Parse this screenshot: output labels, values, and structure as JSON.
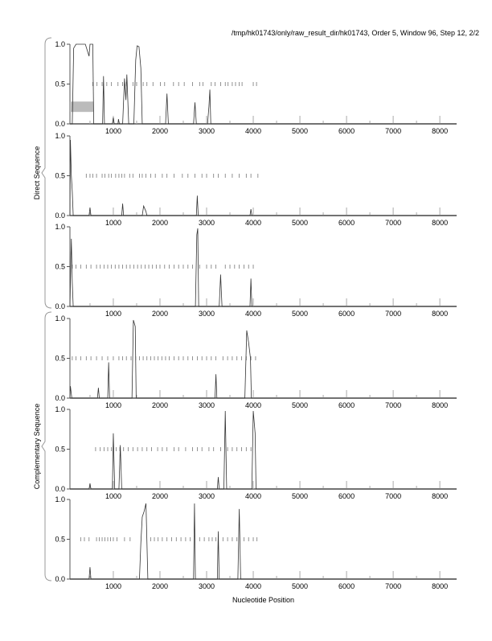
{
  "chart_data": {
    "type": "line",
    "title": "/tmp/hk01743/only/raw_result_dir/hk01743, Order 5, Window 96, Step 12, 2/2",
    "xlabel": "Nucleotide Position",
    "group_labels": [
      "Direct Sequence",
      "Complementary Sequence"
    ],
    "xlim": [
      70,
      8360
    ],
    "ylim": [
      0,
      1
    ],
    "xticks": [
      1000,
      2000,
      3000,
      4000,
      5000,
      6000,
      7000,
      8000
    ],
    "xtick_labels": [
      "1000",
      "2000",
      "3000",
      "4000",
      "5000",
      "6000",
      "7000",
      "8000"
    ],
    "yticks": [
      0,
      0.5,
      1
    ],
    "ytick_labels": [
      "0.0",
      "0.5",
      "1.0"
    ],
    "colors": {
      "line": "#333333",
      "mark": "#777777",
      "box": "#bbbbbb",
      "axis": "#555555"
    },
    "panels": [
      {
        "group": "Direct Sequence",
        "highlight": {
          "x": [
            70,
            570
          ],
          "y": [
            0.15,
            0.28
          ]
        },
        "series": [
          [
            70,
            0
          ],
          [
            120,
            0
          ],
          [
            150,
            0.95
          ],
          [
            200,
            1
          ],
          [
            400,
            1
          ],
          [
            480,
            0.85
          ],
          [
            500,
            1
          ],
          [
            560,
            1
          ],
          [
            580,
            0
          ],
          [
            770,
            0
          ],
          [
            790,
            0.6
          ],
          [
            810,
            0
          ],
          [
            980,
            0
          ],
          [
            1000,
            0.08
          ],
          [
            1020,
            0
          ],
          [
            1100,
            0
          ],
          [
            1110,
            0.06
          ],
          [
            1130,
            0
          ],
          [
            1200,
            0
          ],
          [
            1240,
            0.57
          ],
          [
            1270,
            0.3
          ],
          [
            1290,
            0.62
          ],
          [
            1330,
            0
          ],
          [
            1440,
            0
          ],
          [
            1480,
            0.8
          ],
          [
            1510,
            0.98
          ],
          [
            1550,
            0.97
          ],
          [
            1590,
            0.7
          ],
          [
            1620,
            0
          ],
          [
            2120,
            0
          ],
          [
            2150,
            0.38
          ],
          [
            2180,
            0
          ],
          [
            2720,
            0
          ],
          [
            2750,
            0.27
          ],
          [
            2780,
            0
          ],
          [
            3020,
            0
          ],
          [
            3050,
            0.22
          ],
          [
            3070,
            0.43
          ],
          [
            3090,
            0
          ],
          [
            8360,
            0
          ]
        ],
        "marks": [
          560,
          650,
          760,
          860,
          960,
          1100,
          1200,
          1280,
          1420,
          1500,
          1640,
          1720,
          1850,
          2010,
          2100,
          2290,
          2400,
          2520,
          2700,
          2850,
          2920,
          3100,
          3180,
          3300,
          3400,
          3460,
          3550,
          3620,
          3700,
          3760,
          4000,
          4070
        ]
      },
      {
        "group": "Direct Sequence",
        "series": [
          [
            70,
            0
          ],
          [
            80,
            0.95
          ],
          [
            100,
            0.5
          ],
          [
            120,
            0.3
          ],
          [
            140,
            0
          ],
          [
            480,
            0
          ],
          [
            500,
            0.1
          ],
          [
            520,
            0
          ],
          [
            1180,
            0
          ],
          [
            1200,
            0.15
          ],
          [
            1220,
            0
          ],
          [
            1620,
            0
          ],
          [
            1650,
            0.12
          ],
          [
            1700,
            0.05
          ],
          [
            1720,
            0
          ],
          [
            2780,
            0
          ],
          [
            2800,
            0.25
          ],
          [
            2820,
            0
          ],
          [
            3930,
            0
          ],
          [
            3950,
            0.08
          ],
          [
            3970,
            0
          ],
          [
            8360,
            0
          ]
        ],
        "marks": [
          420,
          500,
          560,
          640,
          760,
          820,
          900,
          960,
          1050,
          1120,
          1180,
          1240,
          1350,
          1420,
          1560,
          1620,
          1700,
          1800,
          1900,
          2050,
          2150,
          2300,
          2480,
          2600,
          2750,
          2900,
          3000,
          3150,
          3250,
          3400,
          3550,
          3700,
          3850,
          3950,
          4100
        ]
      },
      {
        "group": "Direct Sequence",
        "series": [
          [
            70,
            0
          ],
          [
            90,
            0.6
          ],
          [
            100,
            0.85
          ],
          [
            120,
            0.3
          ],
          [
            140,
            0
          ],
          [
            2760,
            0
          ],
          [
            2790,
            0.9
          ],
          [
            2810,
            0.98
          ],
          [
            2830,
            0
          ],
          [
            3270,
            0
          ],
          [
            3300,
            0.4
          ],
          [
            3330,
            0
          ],
          [
            3930,
            0
          ],
          [
            3950,
            0.35
          ],
          [
            3970,
            0
          ],
          [
            8360,
            0
          ]
        ],
        "marks": [
          120,
          200,
          300,
          420,
          520,
          640,
          720,
          800,
          880,
          960,
          1040,
          1120,
          1200,
          1280,
          1360,
          1440,
          1520,
          1600,
          1680,
          1760,
          1840,
          1920,
          2000,
          2100,
          2200,
          2300,
          2400,
          2500,
          2600,
          2700,
          2850,
          3000,
          3100,
          3200,
          3400,
          3500,
          3600,
          3700,
          3800,
          3900,
          4000
        ]
      },
      {
        "group": "Complementary Sequence",
        "series": [
          [
            70,
            0
          ],
          [
            80,
            0.15
          ],
          [
            110,
            0
          ],
          [
            660,
            0
          ],
          [
            680,
            0.13
          ],
          [
            700,
            0
          ],
          [
            880,
            0
          ],
          [
            900,
            0.45
          ],
          [
            920,
            0
          ],
          [
            1400,
            0
          ],
          [
            1430,
            0.98
          ],
          [
            1470,
            0.9
          ],
          [
            1490,
            0
          ],
          [
            3180,
            0
          ],
          [
            3200,
            0.3
          ],
          [
            3220,
            0
          ],
          [
            3820,
            0
          ],
          [
            3860,
            0.85
          ],
          [
            3900,
            0.7
          ],
          [
            3940,
            0.5
          ],
          [
            3960,
            0
          ],
          [
            8360,
            0
          ]
        ],
        "marks": [
          120,
          200,
          300,
          420,
          520,
          640,
          760,
          880,
          1000,
          1120,
          1200,
          1280,
          1380,
          1480,
          1560,
          1640,
          1720,
          1800,
          1880,
          1960,
          2040,
          2120,
          2200,
          2300,
          2400,
          2500,
          2600,
          2700,
          2800,
          2900,
          3000,
          3100,
          3200,
          3350,
          3450,
          3550,
          3650,
          3750,
          3850,
          3950,
          4050
        ]
      },
      {
        "group": "Complementary Sequence",
        "series": [
          [
            70,
            0
          ],
          [
            480,
            0
          ],
          [
            500,
            0.07
          ],
          [
            520,
            0
          ],
          [
            980,
            0
          ],
          [
            1000,
            0.7
          ],
          [
            1030,
            0
          ],
          [
            1120,
            0
          ],
          [
            1150,
            0.55
          ],
          [
            1180,
            0
          ],
          [
            3230,
            0
          ],
          [
            3250,
            0.15
          ],
          [
            3270,
            0
          ],
          [
            3370,
            0
          ],
          [
            3400,
            0.98
          ],
          [
            3430,
            0
          ],
          [
            3970,
            0
          ],
          [
            4000,
            0.98
          ],
          [
            4040,
            0.7
          ],
          [
            4060,
            0
          ],
          [
            8360,
            0
          ]
        ],
        "marks": [
          620,
          720,
          800,
          880,
          960,
          1060,
          1140,
          1220,
          1320,
          1420,
          1520,
          1620,
          1720,
          1820,
          1950,
          2050,
          2150,
          2300,
          2400,
          2550,
          2700,
          2800,
          2900,
          3050,
          3150,
          3300,
          3450,
          3550,
          3650,
          3750,
          3850,
          3950
        ]
      },
      {
        "group": "Complementary Sequence",
        "series": [
          [
            70,
            0
          ],
          [
            480,
            0
          ],
          [
            500,
            0.15
          ],
          [
            520,
            0
          ],
          [
            1560,
            0
          ],
          [
            1590,
            0.45
          ],
          [
            1620,
            0.78
          ],
          [
            1660,
            0.85
          ],
          [
            1700,
            0.95
          ],
          [
            1740,
            0
          ],
          [
            2720,
            0
          ],
          [
            2740,
            0.95
          ],
          [
            2760,
            0
          ],
          [
            3230,
            0
          ],
          [
            3250,
            0.6
          ],
          [
            3270,
            0
          ],
          [
            3670,
            0
          ],
          [
            3700,
            0.88
          ],
          [
            3730,
            0
          ],
          [
            8360,
            0
          ]
        ],
        "marks": [
          300,
          380,
          480,
          640,
          700,
          760,
          820,
          880,
          940,
          1000,
          1080,
          1240,
          1360,
          1800,
          1880,
          1960,
          2050,
          2150,
          2250,
          2350,
          2450,
          2550,
          2650,
          2850,
          2950,
          3050,
          3120,
          3200,
          3350,
          3450,
          3550,
          3650,
          3800,
          3900,
          4000,
          4080
        ]
      }
    ]
  }
}
